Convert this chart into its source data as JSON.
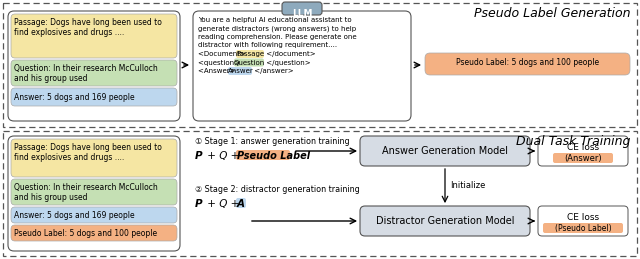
{
  "title_top": "Pseudo Label Generation",
  "title_bottom": "Dual Task Training",
  "passage_text_top": "Passage: Dogs have long been used to\nfind explosives and drugs ....",
  "question_text_top": "Question: In their research McCulloch\nand his group used",
  "answer_text_top": "Answer: 5 dogs and 169 people",
  "passage_text_bot": "Passage: Dogs have long been used to\nfind explosives and drugs ....",
  "question_text_bot": "Question: In their research McCulloch\nand his group used",
  "answer_text_bot": "Answer: 5 dogs and 169 people",
  "pseudo_label_text": "Pseudo Label: 5 dogs and 100 people",
  "llm_box_text": "LLM",
  "prompt_line1": "You are a helpful AI educational assistant to",
  "prompt_line2": "generate distractors (wrong answers) to help",
  "prompt_line3": "reading comprehension. Please generate one",
  "prompt_line4": "distractor with following requirement....",
  "prompt_line5_pre": "<Document> ",
  "prompt_line5_hi": "Passage",
  "prompt_line5_post": " </document>",
  "prompt_line6_pre": "<question> ",
  "prompt_line6_hi": "Question",
  "prompt_line6_post": " </question>",
  "prompt_line7_pre": "<Answer> ",
  "prompt_line7_hi": "Answer",
  "prompt_line7_post": " </answer>",
  "pseudo_label_output": "Pseudo Label: 5 dogs and 100 people",
  "stage1_label": "① Stage 1: answer generation training",
  "stage2_label": "② Stage 2: distractor generation training",
  "answer_gen_model": "Answer Generation Model",
  "distractor_gen_model": "Distractor Generation Model",
  "initialize_label": "Initialize",
  "color_yellow": "#f5e6a3",
  "color_green": "#c5e0b4",
  "color_blue": "#bdd7ee",
  "color_orange": "#f4b183",
  "color_llm_bg": "#8eaabd",
  "color_model_bg": "#d6dce4",
  "bg_color": "#ffffff"
}
